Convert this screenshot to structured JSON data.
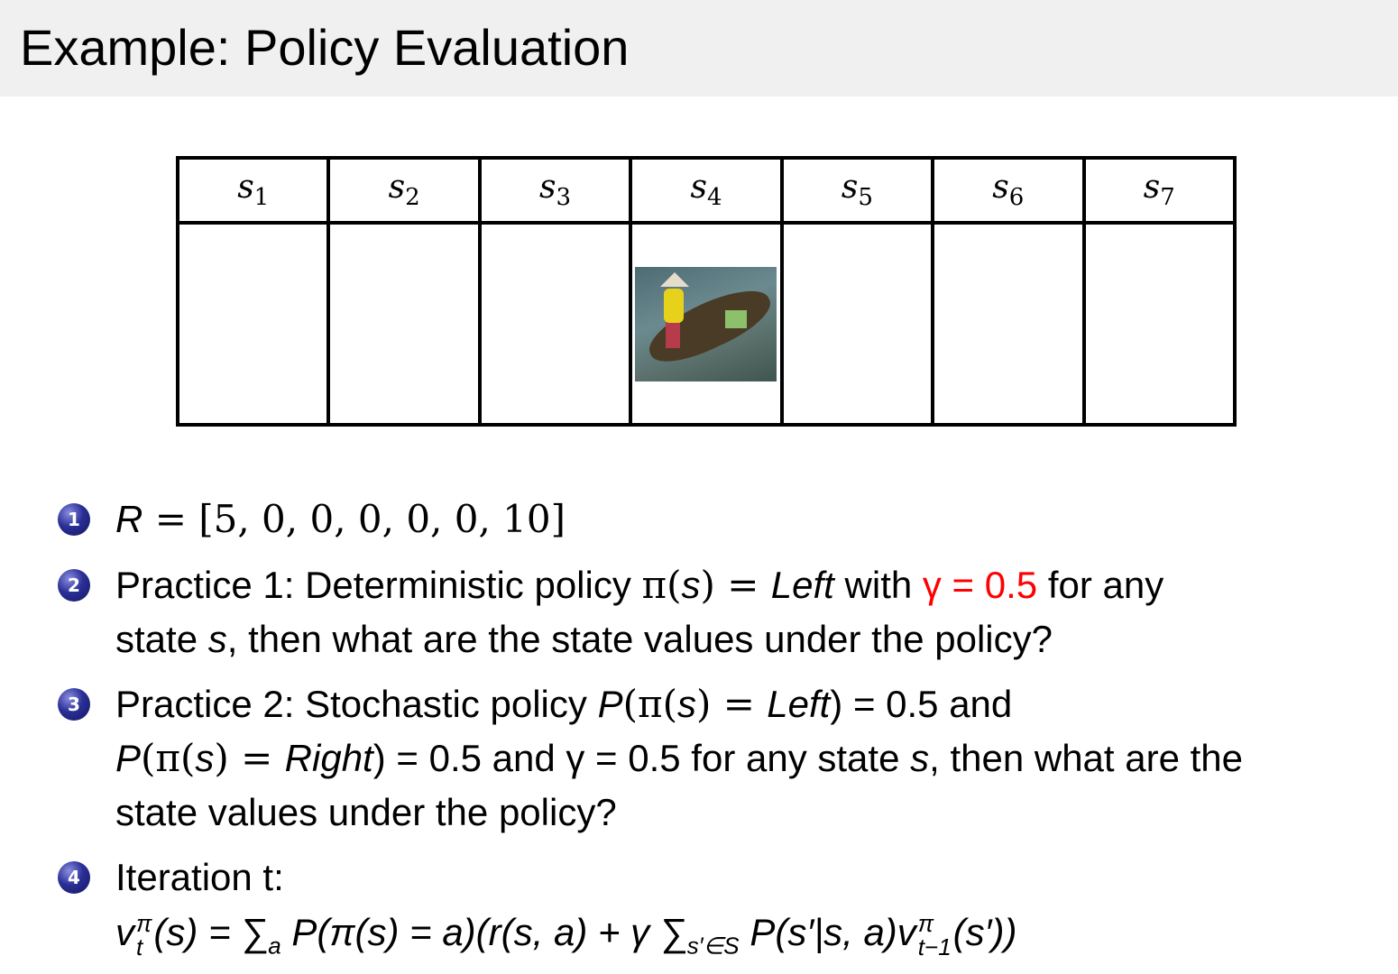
{
  "title": "Example:  Policy Evaluation",
  "states": [
    "s",
    "s",
    "s",
    "s",
    "s",
    "s",
    "s"
  ],
  "state_indices": [
    "1",
    "2",
    "3",
    "4",
    "5",
    "6",
    "7"
  ],
  "agent_state_image": "boat-photo",
  "colors": {
    "highlight": "#ff0000",
    "bullet": "#2a2f96",
    "titlebar": "#f0f0f0"
  },
  "items": [
    {
      "number": "1",
      "R": "R",
      "eq": " = [5, 0, 0, 0, 0, 0, 10]"
    },
    {
      "number": "2",
      "a": "Practice 1:  Deterministic policy ",
      "pi": "π(",
      "s": "s",
      "b": ") = ",
      "left": "Left",
      "c": " with ",
      "gamma": "γ = 0.5",
      "d": " for any",
      "line2a": "state ",
      "line2s": "s",
      "line2b": ", then what are the state values under the policy?"
    },
    {
      "number": "3",
      "a": "Practice 2:  Stochastic policy ",
      "P": "P",
      "b": "(π(",
      "s": "s",
      "c": ") = ",
      "left": "Left",
      "d": ") = 0.5 and",
      "line2P": "P",
      "line2a": "(π(",
      "line2s": "s",
      "line2b": ") = ",
      "right": "Right",
      "line2c": ") = 0.5 and γ = 0.5 for any state ",
      "line2s2": "s",
      "line2d": ", then what are the",
      "line3": "state values under the policy?"
    },
    {
      "number": "4",
      "label": "Iteration t:",
      "formula": "v",
      "f_sup": "π",
      "f_sub": "t",
      "f1": "(s) = ∑",
      "f1_sub": "a",
      "f2": " P(π(s) = a)(r(s, a) + γ ∑",
      "f2_sub": "s′∈S",
      "f3": " P(s′|s, a)v",
      "f3_sup": "π",
      "f3_sub": "t−1",
      "f4": "(s′))"
    }
  ]
}
